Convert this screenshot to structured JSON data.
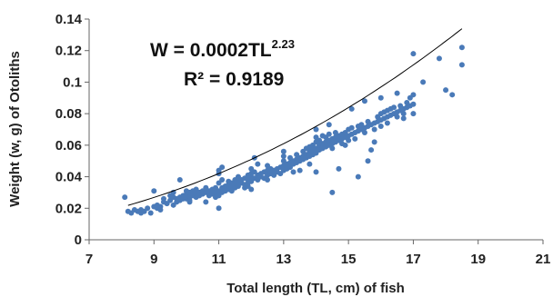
{
  "chart_data": {
    "type": "scatter",
    "title": "",
    "xlabel": "Total  length (TL, cm) of fish",
    "ylabel": "Weight (w, g) of Otoliths",
    "xlim": [
      7,
      21
    ],
    "ylim": [
      0,
      0.14
    ],
    "x_ticks": [
      "7",
      "9",
      "11",
      "13",
      "15",
      "17",
      "19",
      "21"
    ],
    "y_ticks": [
      "0",
      "0.02",
      "0.04",
      "0.06",
      "0.08",
      "0.1",
      "0.12",
      "0.14"
    ],
    "annotations": {
      "equation_main": "W = 0.0002TL",
      "equation_exponent": "2.23",
      "r2": "R² = 0.9189"
    },
    "trendline": {
      "type": "power",
      "a": 0.0002,
      "b": 2.23,
      "x_range": [
        8.2,
        18.5
      ]
    },
    "grid": false,
    "legend": "none",
    "marker_color": "#4a7ab8",
    "trend_color": "#000000",
    "points": [
      [
        8.1,
        0.027
      ],
      [
        8.2,
        0.018
      ],
      [
        8.3,
        0.017
      ],
      [
        8.4,
        0.019
      ],
      [
        8.5,
        0.018
      ],
      [
        8.6,
        0.017
      ],
      [
        8.6,
        0.019
      ],
      [
        8.7,
        0.018
      ],
      [
        8.8,
        0.02
      ],
      [
        9.0,
        0.021
      ],
      [
        9.0,
        0.031
      ],
      [
        9.1,
        0.02
      ],
      [
        9.1,
        0.022
      ],
      [
        9.2,
        0.021
      ],
      [
        9.3,
        0.024
      ],
      [
        9.3,
        0.026
      ],
      [
        9.4,
        0.023
      ],
      [
        9.5,
        0.025
      ],
      [
        9.5,
        0.028
      ],
      [
        9.6,
        0.022
      ],
      [
        9.6,
        0.027
      ],
      [
        9.6,
        0.03
      ],
      [
        9.7,
        0.026
      ],
      [
        9.7,
        0.024
      ],
      [
        9.8,
        0.038
      ],
      [
        9.8,
        0.027
      ],
      [
        9.8,
        0.025
      ],
      [
        9.9,
        0.026
      ],
      [
        9.9,
        0.028
      ],
      [
        10.0,
        0.029
      ],
      [
        10.0,
        0.026
      ],
      [
        10.0,
        0.031
      ],
      [
        10.1,
        0.027
      ],
      [
        10.1,
        0.03
      ],
      [
        10.1,
        0.025
      ],
      [
        10.2,
        0.028
      ],
      [
        10.2,
        0.031
      ],
      [
        10.3,
        0.027
      ],
      [
        10.3,
        0.029
      ],
      [
        10.3,
        0.032
      ],
      [
        10.4,
        0.03
      ],
      [
        10.4,
        0.028
      ],
      [
        10.5,
        0.031
      ],
      [
        10.5,
        0.029
      ],
      [
        10.6,
        0.03
      ],
      [
        10.6,
        0.033
      ],
      [
        10.6,
        0.024
      ],
      [
        10.7,
        0.031
      ],
      [
        10.7,
        0.028
      ],
      [
        10.8,
        0.032
      ],
      [
        10.8,
        0.029
      ],
      [
        10.9,
        0.033
      ],
      [
        10.9,
        0.03
      ],
      [
        11.0,
        0.031
      ],
      [
        11.0,
        0.036
      ],
      [
        11.0,
        0.044
      ],
      [
        11.0,
        0.042
      ],
      [
        11.0,
        0.028
      ],
      [
        11.0,
        0.02
      ],
      [
        11.1,
        0.033
      ],
      [
        11.1,
        0.03
      ],
      [
        11.1,
        0.038
      ],
      [
        11.2,
        0.034
      ],
      [
        11.2,
        0.031
      ],
      [
        11.3,
        0.035
      ],
      [
        11.3,
        0.032
      ],
      [
        11.3,
        0.037
      ],
      [
        11.4,
        0.034
      ],
      [
        11.4,
        0.036
      ],
      [
        11.4,
        0.031
      ],
      [
        11.5,
        0.035
      ],
      [
        11.5,
        0.038
      ],
      [
        11.5,
        0.033
      ],
      [
        11.6,
        0.037
      ],
      [
        11.6,
        0.034
      ],
      [
        11.6,
        0.04
      ],
      [
        11.7,
        0.036
      ],
      [
        11.7,
        0.038
      ],
      [
        11.8,
        0.039
      ],
      [
        11.8,
        0.035
      ],
      [
        11.8,
        0.033
      ],
      [
        11.9,
        0.038
      ],
      [
        11.9,
        0.041
      ],
      [
        11.9,
        0.036
      ],
      [
        12.0,
        0.04
      ],
      [
        12.0,
        0.042
      ],
      [
        12.0,
        0.037
      ],
      [
        12.0,
        0.045
      ],
      [
        12.0,
        0.032
      ],
      [
        12.1,
        0.039
      ],
      [
        12.1,
        0.043
      ],
      [
        12.2,
        0.041
      ],
      [
        12.2,
        0.038
      ],
      [
        12.2,
        0.048
      ],
      [
        12.3,
        0.042
      ],
      [
        12.3,
        0.04
      ],
      [
        12.4,
        0.043
      ],
      [
        12.4,
        0.039
      ],
      [
        12.5,
        0.044
      ],
      [
        12.5,
        0.041
      ],
      [
        12.5,
        0.047
      ],
      [
        12.6,
        0.042
      ],
      [
        12.6,
        0.045
      ],
      [
        12.7,
        0.044
      ],
      [
        12.7,
        0.041
      ],
      [
        12.8,
        0.045
      ],
      [
        12.8,
        0.043
      ],
      [
        12.9,
        0.046
      ],
      [
        12.9,
        0.042
      ],
      [
        13.0,
        0.047
      ],
      [
        13.0,
        0.05
      ],
      [
        13.0,
        0.044
      ],
      [
        13.0,
        0.053
      ],
      [
        13.1,
        0.048
      ],
      [
        13.1,
        0.045
      ],
      [
        13.2,
        0.049
      ],
      [
        13.2,
        0.052
      ],
      [
        13.2,
        0.046
      ],
      [
        13.3,
        0.05
      ],
      [
        13.3,
        0.048
      ],
      [
        13.4,
        0.051
      ],
      [
        13.4,
        0.054
      ],
      [
        13.4,
        0.049
      ],
      [
        13.5,
        0.052
      ],
      [
        13.5,
        0.05
      ],
      [
        13.5,
        0.044
      ],
      [
        13.6,
        0.053
      ],
      [
        13.6,
        0.056
      ],
      [
        13.6,
        0.051
      ],
      [
        13.7,
        0.054
      ],
      [
        13.7,
        0.058
      ],
      [
        13.7,
        0.052
      ],
      [
        13.8,
        0.056
      ],
      [
        13.8,
        0.059
      ],
      [
        13.8,
        0.053
      ],
      [
        13.9,
        0.057
      ],
      [
        13.9,
        0.06
      ],
      [
        13.9,
        0.054
      ],
      [
        14.0,
        0.058
      ],
      [
        14.0,
        0.062
      ],
      [
        14.0,
        0.055
      ],
      [
        14.0,
        0.065
      ],
      [
        14.0,
        0.043
      ],
      [
        14.1,
        0.06
      ],
      [
        14.1,
        0.057
      ],
      [
        14.1,
        0.063
      ],
      [
        14.2,
        0.061
      ],
      [
        14.2,
        0.058
      ],
      [
        14.2,
        0.066
      ],
      [
        14.3,
        0.062
      ],
      [
        14.3,
        0.059
      ],
      [
        14.3,
        0.065
      ],
      [
        14.4,
        0.063
      ],
      [
        14.4,
        0.06
      ],
      [
        14.4,
        0.067
      ],
      [
        14.5,
        0.064
      ],
      [
        14.5,
        0.061
      ],
      [
        14.5,
        0.058
      ],
      [
        14.5,
        0.03
      ],
      [
        14.6,
        0.065
      ],
      [
        14.6,
        0.062
      ],
      [
        14.6,
        0.068
      ],
      [
        14.7,
        0.063
      ],
      [
        14.7,
        0.066
      ],
      [
        14.7,
        0.045
      ],
      [
        14.8,
        0.064
      ],
      [
        14.8,
        0.067
      ],
      [
        14.8,
        0.061
      ],
      [
        14.9,
        0.065
      ],
      [
        14.9,
        0.068
      ],
      [
        15.0,
        0.066
      ],
      [
        15.0,
        0.07
      ],
      [
        15.0,
        0.063
      ],
      [
        15.1,
        0.067
      ],
      [
        15.1,
        0.071
      ],
      [
        15.2,
        0.068
      ],
      [
        15.2,
        0.064
      ],
      [
        15.3,
        0.069
      ],
      [
        15.3,
        0.072
      ],
      [
        15.3,
        0.04
      ],
      [
        15.4,
        0.07
      ],
      [
        15.4,
        0.073
      ],
      [
        15.5,
        0.071
      ],
      [
        15.5,
        0.068
      ],
      [
        15.5,
        0.088
      ],
      [
        15.6,
        0.072
      ],
      [
        15.6,
        0.075
      ],
      [
        15.6,
        0.05
      ],
      [
        15.7,
        0.073
      ],
      [
        15.7,
        0.057
      ],
      [
        15.8,
        0.074
      ],
      [
        15.8,
        0.07
      ],
      [
        15.9,
        0.075
      ],
      [
        15.9,
        0.078
      ],
      [
        16.0,
        0.076
      ],
      [
        16.0,
        0.08
      ],
      [
        16.0,
        0.072
      ],
      [
        16.0,
        0.09
      ],
      [
        16.1,
        0.077
      ],
      [
        16.1,
        0.081
      ],
      [
        16.2,
        0.078
      ],
      [
        16.2,
        0.082
      ],
      [
        16.2,
        0.074
      ],
      [
        16.3,
        0.079
      ],
      [
        16.3,
        0.083
      ],
      [
        16.4,
        0.08
      ],
      [
        16.4,
        0.084
      ],
      [
        16.5,
        0.081
      ],
      [
        16.5,
        0.078
      ],
      [
        16.5,
        0.093
      ],
      [
        16.6,
        0.082
      ],
      [
        16.6,
        0.085
      ],
      [
        16.7,
        0.083
      ],
      [
        16.7,
        0.08
      ],
      [
        16.8,
        0.084
      ],
      [
        16.8,
        0.087
      ],
      [
        16.9,
        0.085
      ],
      [
        16.9,
        0.09
      ],
      [
        17.0,
        0.086
      ],
      [
        17.0,
        0.118
      ],
      [
        17.0,
        0.092
      ],
      [
        17.0,
        0.08
      ],
      [
        17.3,
        0.1
      ],
      [
        17.8,
        0.115
      ],
      [
        18.0,
        0.095
      ],
      [
        18.2,
        0.092
      ],
      [
        18.5,
        0.122
      ],
      [
        18.5,
        0.111
      ],
      [
        8.9,
        0.017
      ],
      [
        9.2,
        0.019
      ],
      [
        10.1,
        0.024
      ],
      [
        10.9,
        0.027
      ],
      [
        11.9,
        0.034
      ],
      [
        12.5,
        0.038
      ],
      [
        13.3,
        0.043
      ],
      [
        13.8,
        0.048
      ],
      [
        14.9,
        0.06
      ],
      [
        15.8,
        0.062
      ],
      [
        16.7,
        0.077
      ],
      [
        13.0,
        0.056
      ],
      [
        12.1,
        0.052
      ],
      [
        11.1,
        0.046
      ],
      [
        14.0,
        0.07
      ],
      [
        15.1,
        0.083
      ],
      [
        14.4,
        0.073
      ]
    ]
  }
}
